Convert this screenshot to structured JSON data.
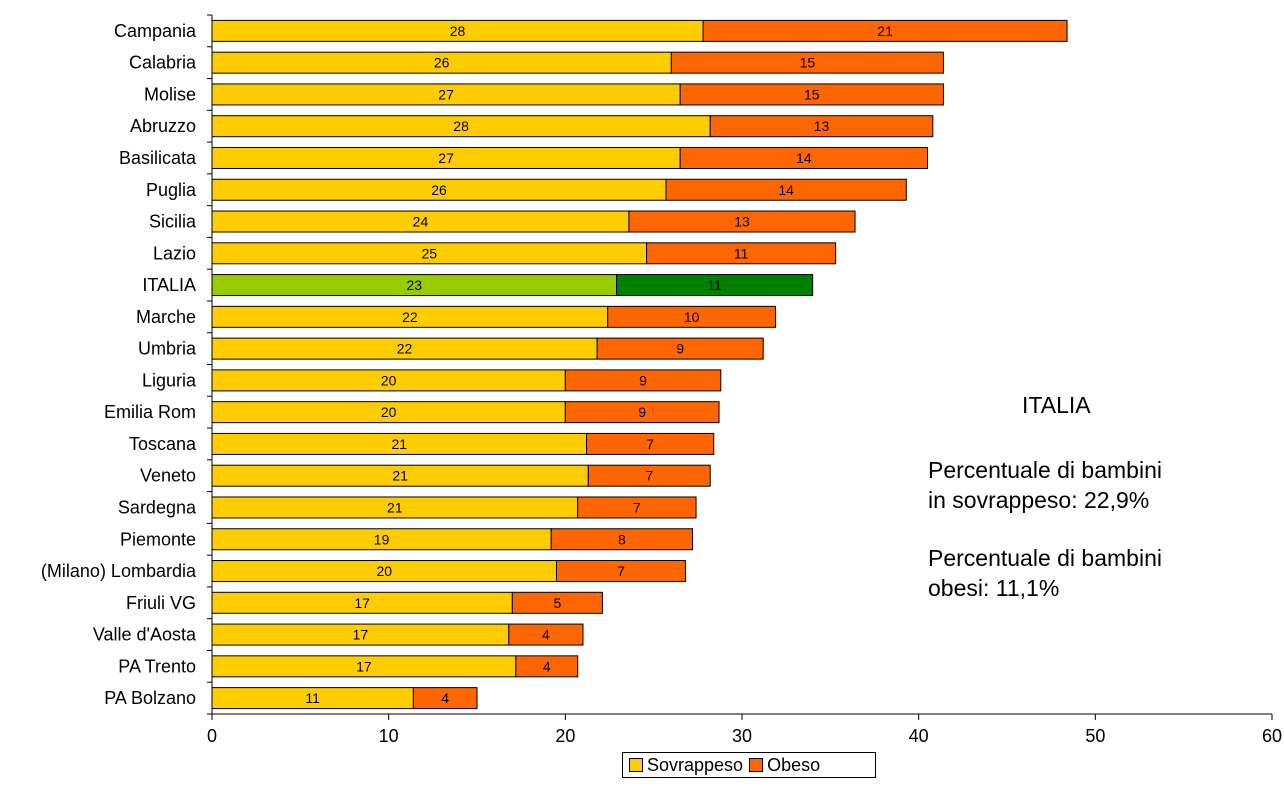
{
  "chart_data": {
    "type": "bar",
    "orientation": "horizontal",
    "stacked": true,
    "categories": [
      "Campania",
      "Calabria",
      "Molise",
      "Abruzzo",
      "Basilicata",
      "Puglia",
      "Sicilia",
      "Lazio",
      "ITALIA",
      "Marche",
      "Umbria",
      "Liguria",
      "Emilia Rom",
      "Toscana",
      "Veneto",
      "Sardegna",
      "Piemonte",
      "(Milano) Lombardia",
      "Friuli VG",
      "Valle d'Aosta",
      "PA Trento",
      "PA Bolzano"
    ],
    "series": [
      {
        "name": "Sovrappeso",
        "color": "#FFCC00",
        "values": [
          27.8,
          26.0,
          26.5,
          28.2,
          26.5,
          25.7,
          23.6,
          24.6,
          22.9,
          22.4,
          21.8,
          20.0,
          20.0,
          21.2,
          21.3,
          20.7,
          19.2,
          19.5,
          17.0,
          16.8,
          17.2,
          11.4
        ],
        "labels": [
          "28",
          "26",
          "27",
          "28",
          "27",
          "26",
          "24",
          "25",
          "23",
          "22",
          "22",
          "20",
          "20",
          "21",
          "21",
          "21",
          "19",
          "20",
          "17",
          "17",
          "17",
          "11"
        ]
      },
      {
        "name": "Obeso",
        "color": "#FF6600",
        "values": [
          20.6,
          15.4,
          14.9,
          12.6,
          14.0,
          13.6,
          12.8,
          10.7,
          11.1,
          9.5,
          9.4,
          8.8,
          8.7,
          7.2,
          6.9,
          6.7,
          8.0,
          7.3,
          5.1,
          4.2,
          3.5,
          3.6
        ],
        "labels": [
          "21",
          "15",
          "15",
          "13",
          "14",
          "14",
          "13",
          "11",
          "11",
          "10",
          "9",
          "9",
          "9",
          "7",
          "7",
          "7",
          "8",
          "7",
          "5",
          "4",
          "4",
          "4"
        ]
      }
    ],
    "highlight": {
      "category": "ITALIA",
      "colors": [
        "#99CC00",
        "#008000"
      ]
    },
    "xlim": [
      0,
      60
    ],
    "xticks": [
      "0",
      "10",
      "20",
      "30",
      "40",
      "50",
      "60"
    ],
    "grid": false,
    "legend_position": "bottom",
    "title": "",
    "xlabel": "",
    "ylabel": ""
  },
  "annotation": {
    "title": "ITALIA",
    "line1a": "Percentuale di bambini",
    "line1b": "in sovrappeso: 22,9%",
    "line2a": "Percentuale di bambini",
    "line2b": "obesi: 11,1%"
  },
  "legend": {
    "items": [
      {
        "label": "Sovrappeso",
        "color": "#FFCC00"
      },
      {
        "label": "Obeso",
        "color": "#FF6600"
      }
    ]
  }
}
